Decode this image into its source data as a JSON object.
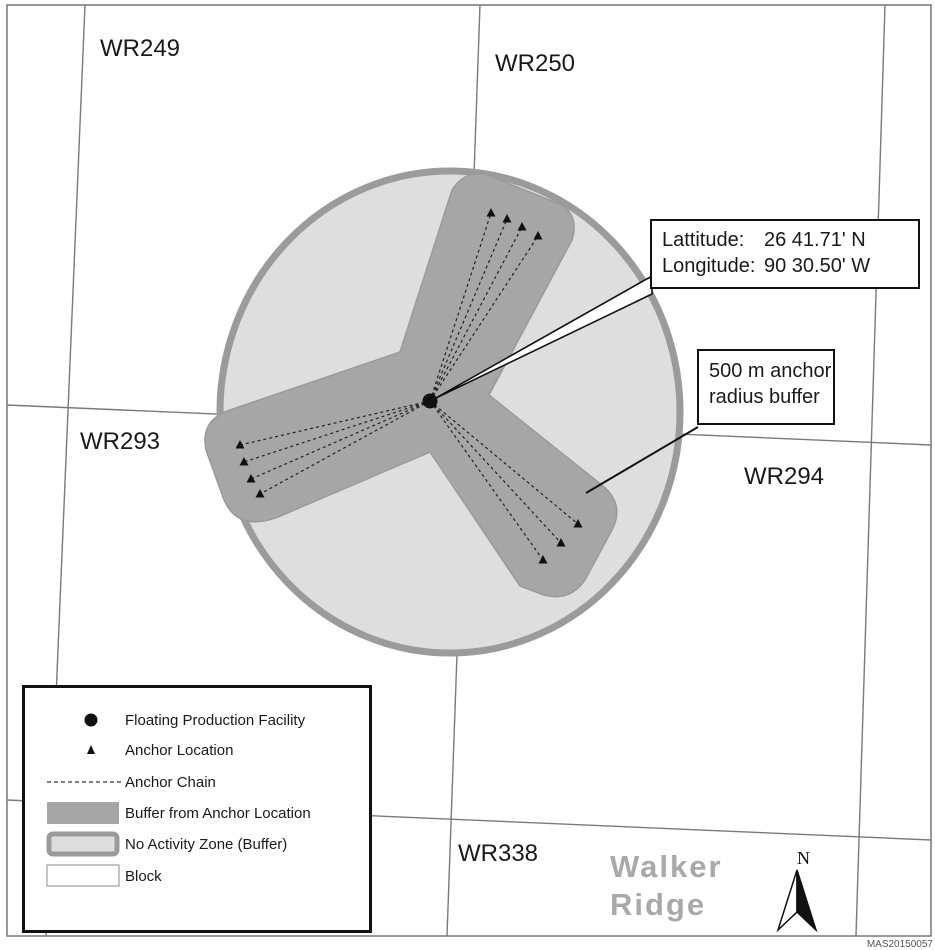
{
  "blocks": {
    "wr249": "WR249",
    "wr250": "WR250",
    "wr293": "WR293",
    "wr294": "WR294",
    "wr338": "WR338"
  },
  "facility_callout": {
    "lat_label": "Lattitude:",
    "lat_value": "26 41.71' N",
    "lon_label": "Longitude:",
    "lon_value": "90 30.50' W"
  },
  "buffer_callout": {
    "line1": "500 m anchor",
    "line2": "radius buffer"
  },
  "region": {
    "line1": "Walker",
    "line2": "Ridge"
  },
  "north_arrow": {
    "label": "N"
  },
  "legend": {
    "items": [
      {
        "label": "Floating Production Facility",
        "symbol": "facility-dot"
      },
      {
        "label": "Anchor Location",
        "symbol": "anchor-triangle"
      },
      {
        "label": "Anchor Chain",
        "symbol": "dashed-line"
      },
      {
        "label": "Buffer from Anchor Location",
        "symbol": "dark-gray-fill"
      },
      {
        "label": "No Activity Zone (Buffer)",
        "symbol": "light-gray-fill-outlined"
      },
      {
        "label": "Block",
        "symbol": "white-fill-outlined"
      }
    ]
  },
  "credit": "MAS20150057",
  "colors": {
    "no_activity_fill": "#dedede",
    "no_activity_outline": "#9b9b9b",
    "anchor_buffer_fill": "#a6a6a6",
    "block_lines": "#777777",
    "region_label": "#a9a9a9"
  }
}
